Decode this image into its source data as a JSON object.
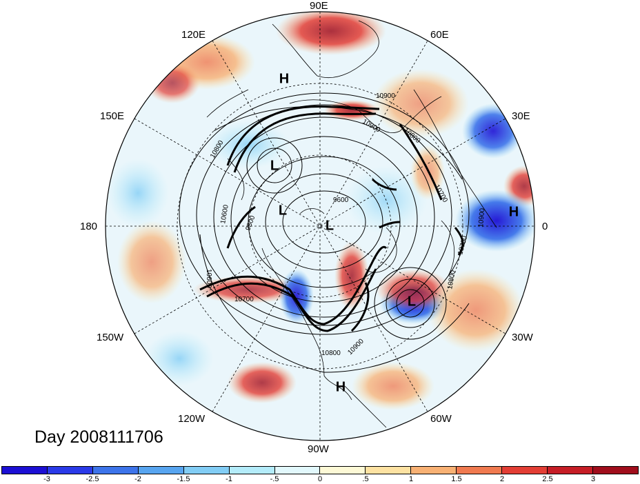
{
  "title": "Day 2008111706",
  "longitude_labels": {
    "lon_90e": "90E",
    "lon_60e": "60E",
    "lon_30e": "30E",
    "lon_0": "0",
    "lon_30w": "30W",
    "lon_60w": "60W",
    "lon_90w": "90W",
    "lon_120w": "120W",
    "lon_150w": "150W",
    "lon_180": "180",
    "lon_150e": "150E",
    "lon_120e": "120E"
  },
  "contour_labels": [
    "10900",
    "10800",
    "10600",
    "10700",
    "10900",
    "10800",
    "10900",
    "10700",
    "10800",
    "10600",
    "10700",
    "9600",
    "9800",
    "10800",
    "10900"
  ],
  "pressure_centers": [
    {
      "label": "H"
    },
    {
      "label": "L"
    },
    {
      "label": "L"
    },
    {
      "label": "L"
    },
    {
      "label": "H"
    },
    {
      "label": "L"
    },
    {
      "label": "H"
    }
  ],
  "colorbar": {
    "labels": [
      "-3",
      "-2.5",
      "-2",
      "-1.5",
      "-1",
      "-.5",
      "0",
      ".5",
      "1",
      "1.5",
      "2",
      "2.5",
      "3"
    ],
    "colors": [
      "#1c0fd4",
      "#2a3ae8",
      "#3d74ea",
      "#58a5f0",
      "#82cdf5",
      "#b4ecfa",
      "#e2f8fc",
      "#fdf9d6",
      "#fde2a2",
      "#f8b174",
      "#f07a50",
      "#e33e35",
      "#c61d26",
      "#a00d1c"
    ]
  }
}
